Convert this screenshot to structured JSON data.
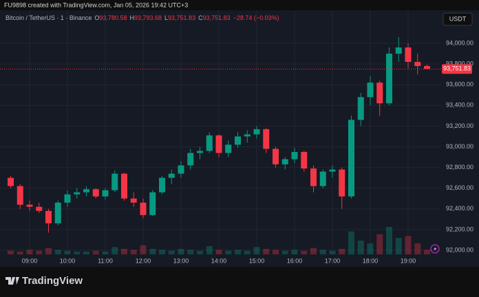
{
  "header": {
    "caption": "FU9898 created with TradingView.com, Jan 05, 2026 19:42 UTC+3"
  },
  "legend": {
    "symbol": "Bitcoin / TetherUS · 1 · Binance",
    "o_label": "O",
    "o": "93,780.58",
    "h_label": "H",
    "h": "93,793.68",
    "l_label": "L",
    "l": "93,751.83",
    "c_label": "C",
    "c": "93,751.83",
    "change": "−28.74 (−0.03%)"
  },
  "currency_button": "USDT",
  "footer": {
    "brand": "TradingView"
  },
  "chart_data": {
    "type": "candlestick",
    "x": [
      "08:30",
      "08:45",
      "09:00",
      "09:15",
      "09:30",
      "09:45",
      "10:00",
      "10:15",
      "10:30",
      "10:45",
      "11:00",
      "11:15",
      "11:30",
      "11:45",
      "12:00",
      "12:15",
      "12:30",
      "12:45",
      "13:00",
      "13:15",
      "13:30",
      "13:45",
      "14:00",
      "14:15",
      "14:30",
      "14:45",
      "15:00",
      "15:15",
      "15:30",
      "15:45",
      "16:00",
      "16:15",
      "16:30",
      "16:45",
      "17:00",
      "17:15",
      "17:30",
      "17:45",
      "18:00",
      "18:15",
      "18:30",
      "18:45",
      "19:00",
      "19:15",
      "19:30"
    ],
    "open": [
      92700,
      92620,
      92440,
      92420,
      92380,
      92260,
      92460,
      92540,
      92560,
      92590,
      92520,
      92580,
      92740,
      92500,
      92460,
      92340,
      92560,
      92700,
      92740,
      92820,
      92940,
      92960,
      93110,
      92940,
      93020,
      93100,
      93120,
      93170,
      92980,
      92830,
      92880,
      92950,
      92790,
      92620,
      92760,
      92780,
      92520,
      93260,
      93480,
      93620,
      93420,
      93900,
      93960,
      93820,
      93780.58
    ],
    "high": [
      92720,
      92640,
      92480,
      92460,
      92400,
      92480,
      92580,
      92600,
      92620,
      92600,
      92600,
      92770,
      92750,
      92560,
      92500,
      92580,
      92720,
      92780,
      92860,
      92980,
      93000,
      93140,
      93120,
      93060,
      93140,
      93160,
      93200,
      93180,
      93000,
      92900,
      92990,
      92960,
      92820,
      92780,
      92820,
      92800,
      93300,
      93520,
      93680,
      93640,
      93960,
      94060,
      94000,
      93900,
      93793.68
    ],
    "low": [
      92600,
      92400,
      92380,
      92360,
      92170,
      92240,
      92420,
      92500,
      92520,
      92500,
      92490,
      92560,
      92480,
      92420,
      92310,
      92330,
      92540,
      92640,
      92700,
      92780,
      92880,
      92940,
      92900,
      92900,
      92990,
      93040,
      93080,
      92940,
      92800,
      92780,
      92840,
      92760,
      92560,
      92600,
      92700,
      92400,
      92500,
      93200,
      93400,
      93300,
      93400,
      93820,
      93760,
      93700,
      93751.83
    ],
    "close": [
      92620,
      92440,
      92420,
      92380,
      92260,
      92460,
      92540,
      92560,
      92590,
      92520,
      92580,
      92740,
      92500,
      92460,
      92340,
      92560,
      92700,
      92740,
      92820,
      92940,
      92960,
      93110,
      92940,
      93020,
      93100,
      93120,
      93170,
      92980,
      92830,
      92880,
      92950,
      92790,
      92620,
      92760,
      92780,
      92520,
      93260,
      93480,
      93620,
      93420,
      93900,
      93960,
      93820,
      93780,
      93751.83
    ],
    "volume": [
      4,
      3,
      5,
      4,
      7,
      5,
      4,
      3,
      3,
      4,
      3,
      8,
      6,
      5,
      10,
      6,
      5,
      4,
      6,
      5,
      4,
      9,
      5,
      4,
      5,
      4,
      8,
      6,
      5,
      4,
      5,
      4,
      7,
      5,
      4,
      6,
      25,
      15,
      12,
      22,
      30,
      18,
      20,
      12,
      5
    ],
    "up_color": "#089981",
    "down_color": "#f23645",
    "ylim": [
      91960,
      94319
    ],
    "yticks": [
      {
        "value": 92000,
        "label": "92,000.00"
      },
      {
        "value": 92200,
        "label": "92,200.00"
      },
      {
        "value": 92400,
        "label": "92,400.00"
      },
      {
        "value": 92600,
        "label": "92,600.00"
      },
      {
        "value": 92800,
        "label": "92,800.00"
      },
      {
        "value": 93000,
        "label": "93,000.00"
      },
      {
        "value": 93200,
        "label": "93,200.00"
      },
      {
        "value": 93400,
        "label": "93,400.00"
      },
      {
        "value": 93600,
        "label": "93,600.00"
      },
      {
        "value": 93800,
        "label": "93,800.00"
      },
      {
        "value": 94000,
        "label": "94,000.00"
      }
    ],
    "xticks": [
      "09:00",
      "10:00",
      "11:00",
      "12:00",
      "13:00",
      "14:00",
      "15:00",
      "16:00",
      "17:00",
      "18:00",
      "19:00"
    ],
    "last_price": {
      "value": 93751.83,
      "label": "93,751.83"
    },
    "grid": true
  }
}
